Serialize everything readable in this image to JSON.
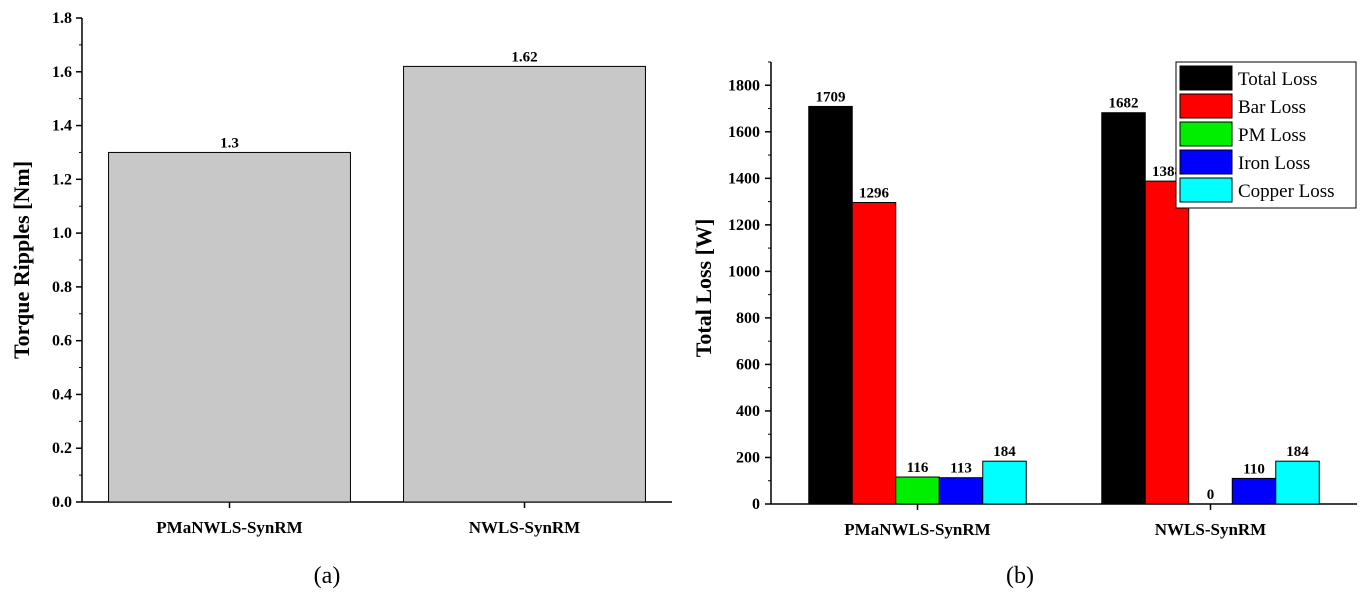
{
  "chart_data": [
    {
      "type": "bar",
      "categories": [
        "PMaNWLS-SynRM",
        "NWLS-SynRM"
      ],
      "values": [
        1.3,
        1.62
      ],
      "data_labels": [
        "1.3",
        "1.62"
      ],
      "ylabel": "Torque Ripples [Nm]",
      "xlabel": "",
      "ylim": [
        0,
        1.8
      ],
      "yticks": [
        "0.0",
        "0.2",
        "0.4",
        "0.6",
        "0.8",
        "1.0",
        "1.2",
        "1.4",
        "1.6",
        "1.8"
      ],
      "bar_color": "#c8c8c8",
      "grid": false,
      "panel_label": "(a)"
    },
    {
      "type": "bar",
      "categories": [
        "PMaNWLS-SynRM",
        "NWLS-SynRM"
      ],
      "series": [
        {
          "name": "Total Loss",
          "values": [
            1709,
            1682
          ],
          "color": "#000000"
        },
        {
          "name": "Bar Loss",
          "values": [
            1296,
            1388
          ],
          "color": "#ff0000"
        },
        {
          "name": "PM Loss",
          "values": [
            116,
            0
          ],
          "color": "#00ee00"
        },
        {
          "name": "Iron Loss",
          "values": [
            113,
            110
          ],
          "color": "#0000ff"
        },
        {
          "name": "Copper Loss",
          "values": [
            184,
            184
          ],
          "color": "#00ffff"
        }
      ],
      "ylabel": "Total Loss [W]",
      "xlabel": "",
      "ylim": [
        0,
        1900
      ],
      "yticks": [
        "0",
        "200",
        "400",
        "600",
        "800",
        "1000",
        "1200",
        "1400",
        "1600",
        "1800"
      ],
      "legend_position": "top-right",
      "grid": false,
      "panel_label": "(b)"
    }
  ]
}
